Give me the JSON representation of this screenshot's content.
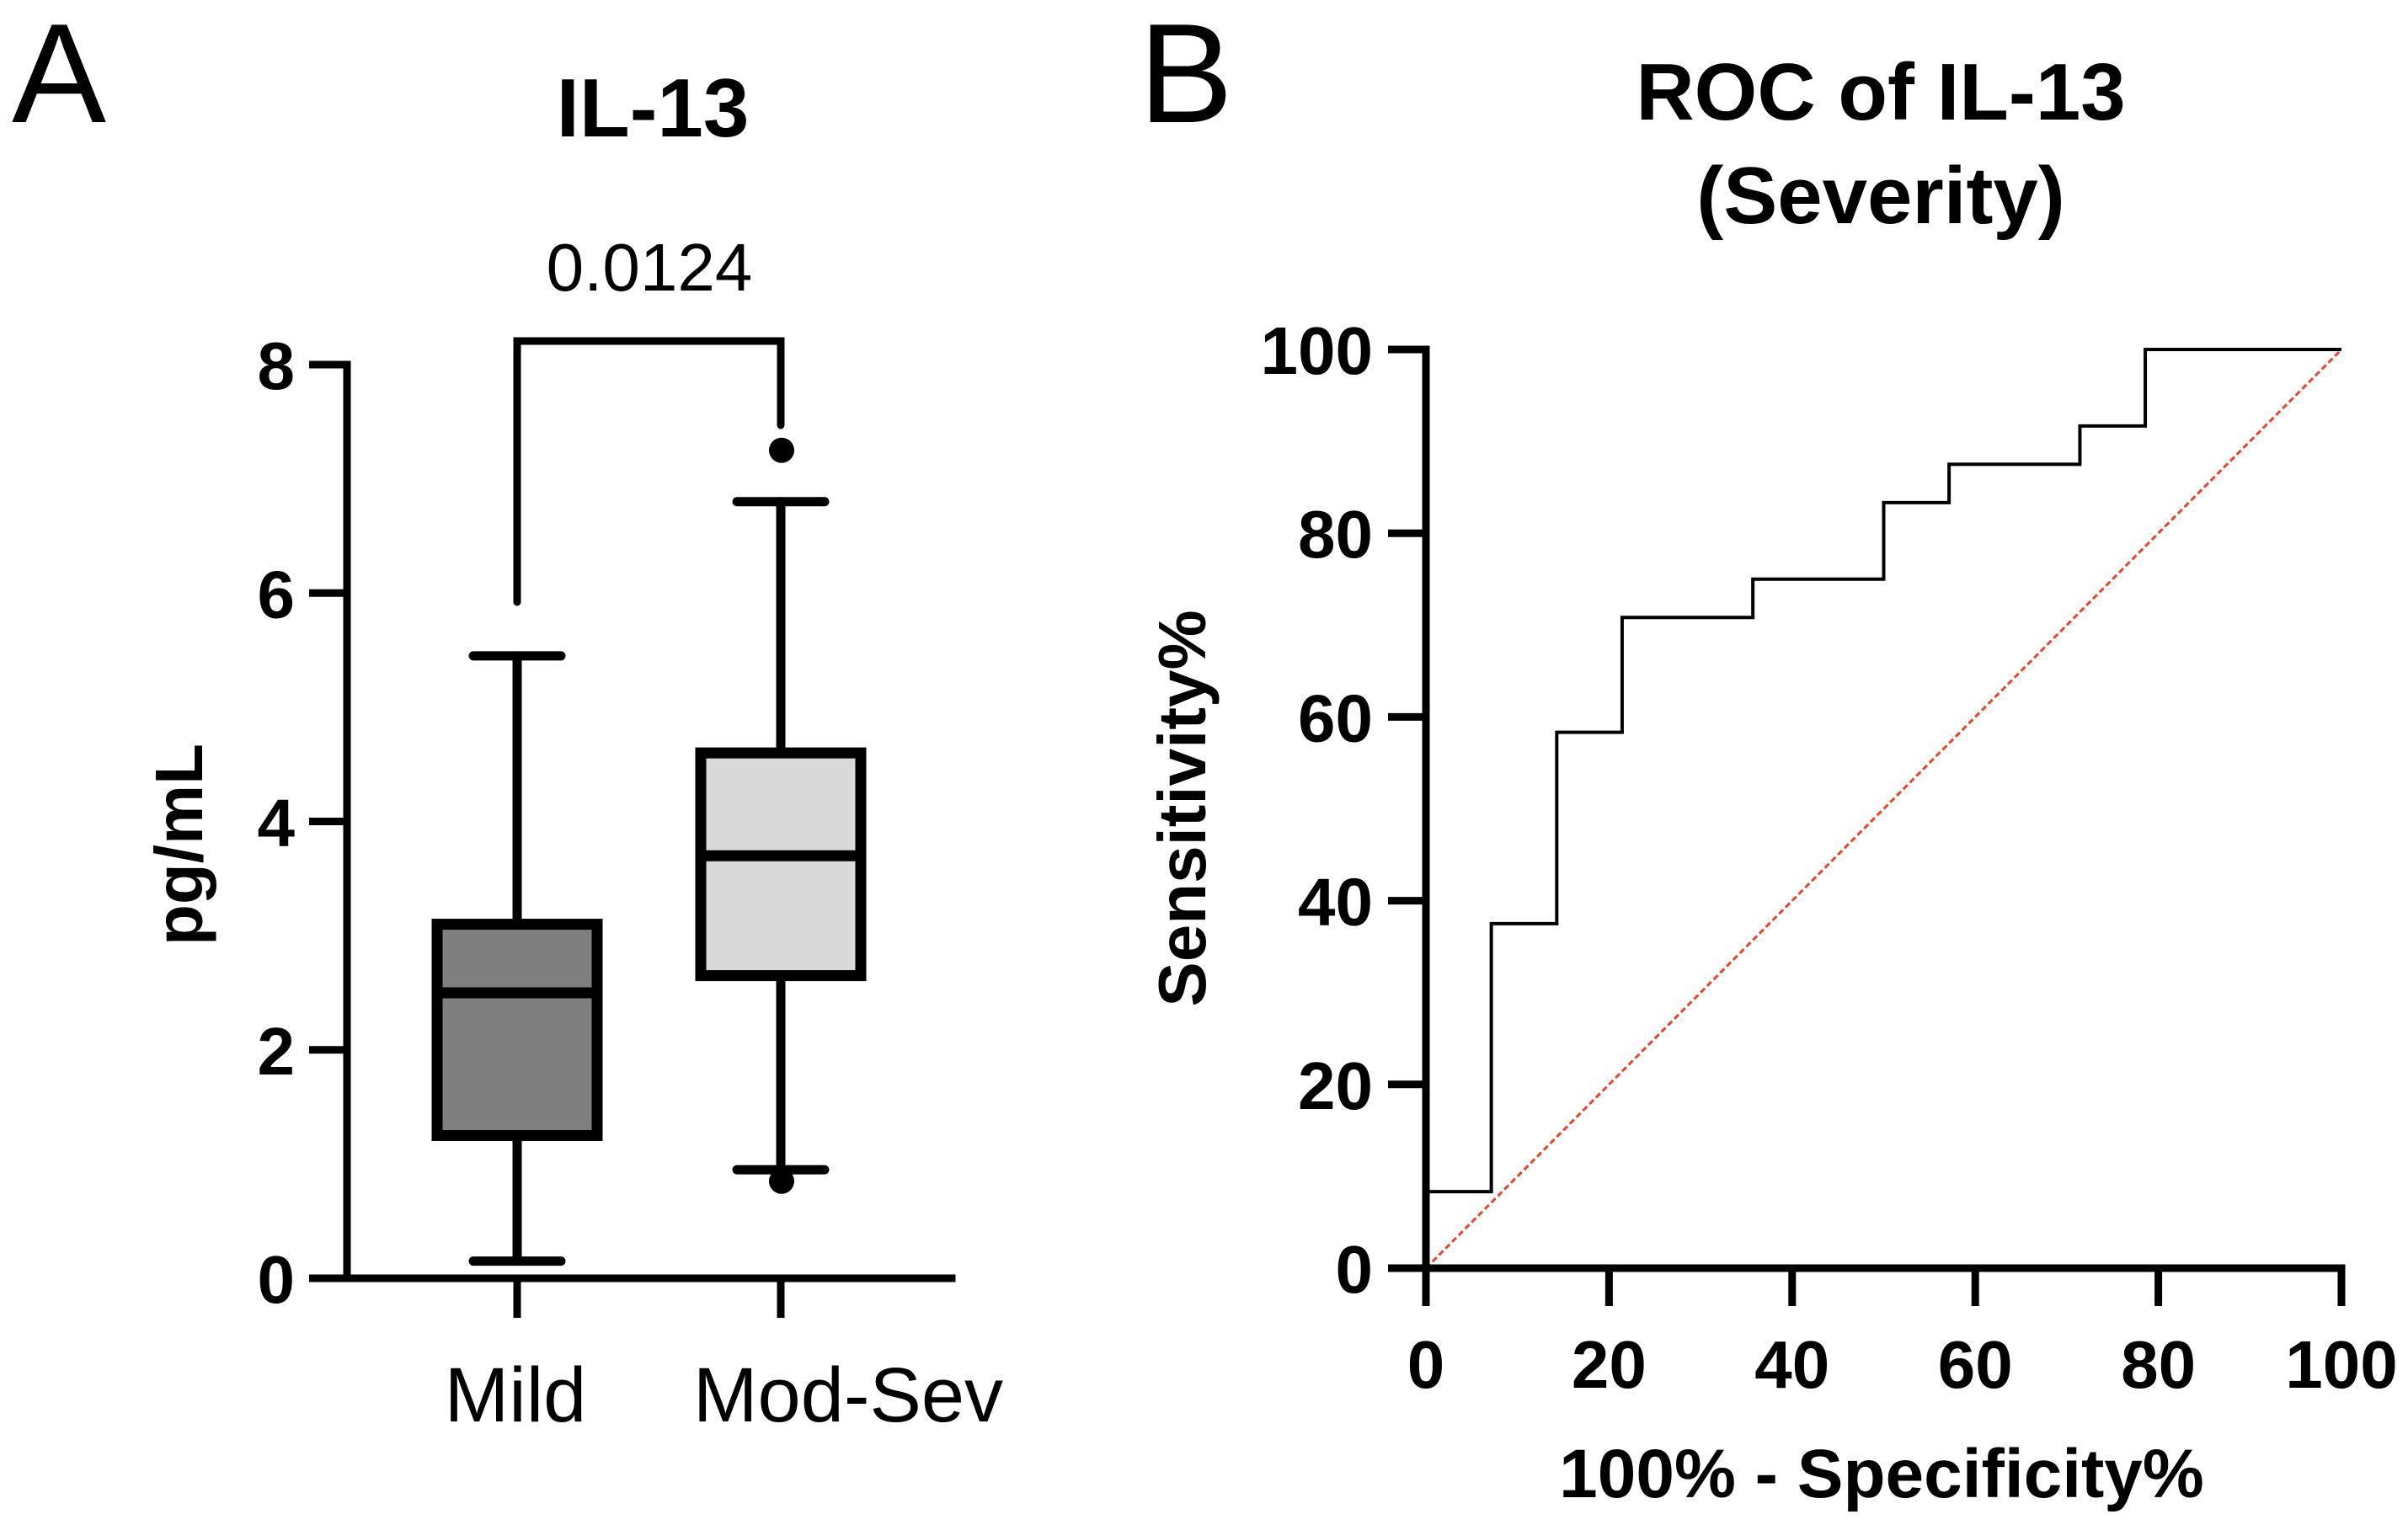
{
  "panels": {
    "a_label": "A",
    "b_label": "B"
  },
  "chart_data": [
    {
      "type": "box",
      "title": "IL-13",
      "xlabel": "",
      "ylabel": "pg/mL",
      "ylim": [
        0,
        8
      ],
      "yticks": [
        "0",
        "2",
        "4",
        "6",
        "8"
      ],
      "categories": [
        "Mild",
        "Mod-Sev"
      ],
      "box_colors": [
        "#7f7f7f",
        "#d9d9d9"
      ],
      "boxes": [
        {
          "name": "Mild",
          "whisker_low": 0.15,
          "q1": 1.25,
          "median": 2.5,
          "q3": 3.1,
          "whisker_high": 5.45,
          "outliers": []
        },
        {
          "name": "Mod-Sev",
          "whisker_low": 0.95,
          "q1": 2.65,
          "median": 3.7,
          "q3": 4.6,
          "whisker_high": 6.8,
          "outliers": [
            0.85,
            7.25
          ]
        }
      ],
      "comparison": {
        "groups": [
          "Mild",
          "Mod-Sev"
        ],
        "p_value": "0.0124"
      }
    },
    {
      "type": "line",
      "title_lines": [
        "ROC of IL-13",
        "(Severity)"
      ],
      "xlabel": "100% - Specificity%",
      "ylabel": "Sensitivity%",
      "xlim": [
        0,
        100
      ],
      "ylim": [
        0,
        100
      ],
      "xticks": [
        "0",
        "20",
        "40",
        "60",
        "80",
        "100"
      ],
      "yticks": [
        "0",
        "20",
        "40",
        "60",
        "80",
        "100"
      ],
      "series": [
        {
          "name": "ROC curve",
          "color": "#000000",
          "x": [
            0,
            0,
            7.14,
            7.14,
            14.29,
            14.29,
            21.43,
            21.43,
            35.71,
            35.71,
            50,
            50,
            57.14,
            57.14,
            71.43,
            71.43,
            78.57,
            78.57,
            100
          ],
          "y": [
            0,
            8.33,
            8.33,
            37.5,
            37.5,
            58.33,
            58.33,
            70.83,
            70.83,
            75,
            75,
            83.33,
            83.33,
            87.5,
            87.5,
            91.67,
            91.67,
            100,
            100
          ]
        },
        {
          "name": "Reference line",
          "color": "#e8452c",
          "x": [
            0,
            100
          ],
          "y": [
            0,
            100
          ]
        }
      ]
    }
  ]
}
